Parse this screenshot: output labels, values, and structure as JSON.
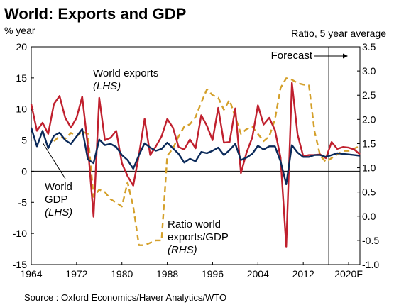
{
  "chart_data": {
    "type": "line",
    "title": "World: Exports and GDP",
    "ylabel_left": "% year",
    "ylabel_right": "Ratio, 5 year average",
    "source": "Source : Oxford Economics/Haver Analytics/WTO",
    "forecast_label": "Forecast",
    "forecast_start_year": 2017,
    "xlim": [
      1964,
      2022
    ],
    "ylim_left": [
      -15,
      20
    ],
    "ylim_right": [
      -1.0,
      3.5
    ],
    "x_tick_values": [
      1964,
      1972,
      1980,
      1988,
      1996,
      2004,
      2012,
      2020
    ],
    "x_tick_labels": [
      "1964",
      "1972",
      "1980",
      "1988",
      "1996",
      "2004",
      "2012",
      "2020F"
    ],
    "y_left_ticks": [
      "20",
      "15",
      "10",
      "5",
      "0",
      "-5",
      "-10",
      "-15"
    ],
    "y_right_ticks": [
      "3.5",
      "3.0",
      "2.5",
      "2.0",
      "1.5",
      "1.0",
      "0.5",
      "0.0",
      "-0.5",
      "-1.0"
    ],
    "grid": false,
    "zero_line": true,
    "colors": {
      "world_exports": "#c0202e",
      "world_gdp": "#0b2a5a",
      "ratio": "#d4a02a"
    },
    "annotations": [
      {
        "series": "world_exports",
        "lines": [
          "World exports",
          "(LHS)"
        ]
      },
      {
        "series": "world_gdp",
        "lines": [
          "World",
          "GDP",
          "(LHS)"
        ]
      },
      {
        "series": "ratio",
        "lines": [
          "Ratio world",
          "exports/GDP",
          "(RHS)"
        ]
      }
    ],
    "series": [
      {
        "name": "World exports (LHS)",
        "axis": "left",
        "style": "solid",
        "x": [
          1964,
          1965,
          1966,
          1967,
          1968,
          1969,
          1970,
          1971,
          1972,
          1973,
          1974,
          1975,
          1976,
          1977,
          1978,
          1979,
          1980,
          1981,
          1982,
          1983,
          1984,
          1985,
          1986,
          1987,
          1988,
          1989,
          1990,
          1991,
          1992,
          1993,
          1994,
          1995,
          1996,
          1997,
          1998,
          1999,
          2000,
          2001,
          2002,
          2003,
          2004,
          2005,
          2006,
          2007,
          2008,
          2009,
          2010,
          2011,
          2012,
          2013,
          2014,
          2015,
          2016,
          2017,
          2018,
          2019,
          2020,
          2021,
          2022
        ],
        "y": [
          10.8,
          6.5,
          7.8,
          6.0,
          10.8,
          12.1,
          8.6,
          7.0,
          8.6,
          12.0,
          4.0,
          -7.3,
          11.8,
          5.0,
          5.4,
          6.5,
          1.3,
          -0.8,
          -2.3,
          2.6,
          8.4,
          2.6,
          4.0,
          5.6,
          8.4,
          7.0,
          3.9,
          3.5,
          5.1,
          3.7,
          9.0,
          7.3,
          5.0,
          10.2,
          4.6,
          4.7,
          10.1,
          -0.3,
          3.0,
          5.4,
          10.6,
          7.5,
          8.6,
          6.6,
          2.2,
          -12.1,
          14.2,
          5.9,
          2.4,
          2.6,
          2.6,
          2.7,
          2.1,
          4.7,
          3.6,
          3.9,
          3.8,
          3.5,
          2.7
        ]
      },
      {
        "name": "World GDP (LHS)",
        "axis": "left",
        "style": "solid",
        "x": [
          1964,
          1965,
          1966,
          1967,
          1968,
          1969,
          1970,
          1971,
          1972,
          1973,
          1974,
          1975,
          1976,
          1977,
          1978,
          1979,
          1980,
          1981,
          1982,
          1983,
          1984,
          1985,
          1986,
          1987,
          1988,
          1989,
          1990,
          1991,
          1992,
          1993,
          1994,
          1995,
          1996,
          1997,
          1998,
          1999,
          2000,
          2001,
          2002,
          2003,
          2004,
          2005,
          2006,
          2007,
          2008,
          2009,
          2010,
          2011,
          2012,
          2013,
          2014,
          2015,
          2016,
          2017,
          2018,
          2019,
          2020,
          2021,
          2022
        ],
        "y": [
          7.0,
          4.0,
          6.5,
          3.7,
          5.7,
          6.2,
          5.0,
          4.4,
          5.6,
          6.8,
          1.9,
          1.3,
          5.1,
          4.2,
          4.4,
          3.9,
          2.6,
          1.8,
          0.4,
          2.6,
          4.5,
          3.8,
          3.3,
          3.6,
          4.6,
          3.7,
          2.8,
          1.4,
          2.0,
          1.6,
          3.1,
          2.9,
          3.3,
          3.8,
          2.6,
          3.4,
          4.4,
          1.8,
          2.2,
          2.8,
          4.1,
          3.5,
          4.0,
          4.0,
          1.6,
          -2.1,
          4.2,
          3.0,
          2.3,
          2.3,
          2.6,
          2.6,
          2.3,
          2.6,
          2.9,
          2.8,
          2.7,
          2.6,
          2.5
        ]
      },
      {
        "name": "Ratio world exports/GDP (RHS)",
        "axis": "right",
        "style": "dashed",
        "x": [
          1968,
          1969,
          1970,
          1971,
          1972,
          1973,
          1974,
          1975,
          1976,
          1977,
          1978,
          1979,
          1980,
          1981,
          1982,
          1983,
          1984,
          1985,
          1986,
          1987,
          1988,
          1989,
          1990,
          1991,
          1992,
          1993,
          1994,
          1995,
          1996,
          1997,
          1998,
          1999,
          2000,
          2001,
          2002,
          2003,
          2004,
          2005,
          2006,
          2007,
          2008,
          2009,
          2010,
          2011,
          2012,
          2013,
          2014,
          2015,
          2016,
          2017,
          2018,
          2019,
          2020,
          2021,
          2022
        ],
        "y": [
          1.55,
          1.65,
          1.6,
          1.72,
          1.65,
          1.75,
          1.7,
          0.4,
          0.55,
          0.5,
          0.35,
          0.28,
          0.2,
          0.7,
          0.2,
          -0.6,
          -0.6,
          -0.55,
          -0.5,
          -0.5,
          1.25,
          1.4,
          1.65,
          1.85,
          1.9,
          2.05,
          2.35,
          2.62,
          2.5,
          2.45,
          2.2,
          2.4,
          2.05,
          1.7,
          1.8,
          1.85,
          1.7,
          1.55,
          1.65,
          2.0,
          2.65,
          2.85,
          2.82,
          2.75,
          2.72,
          2.7,
          1.75,
          1.25,
          1.12,
          1.2,
          1.28,
          1.35,
          1.35,
          1.4,
          1.45
        ]
      }
    ]
  }
}
